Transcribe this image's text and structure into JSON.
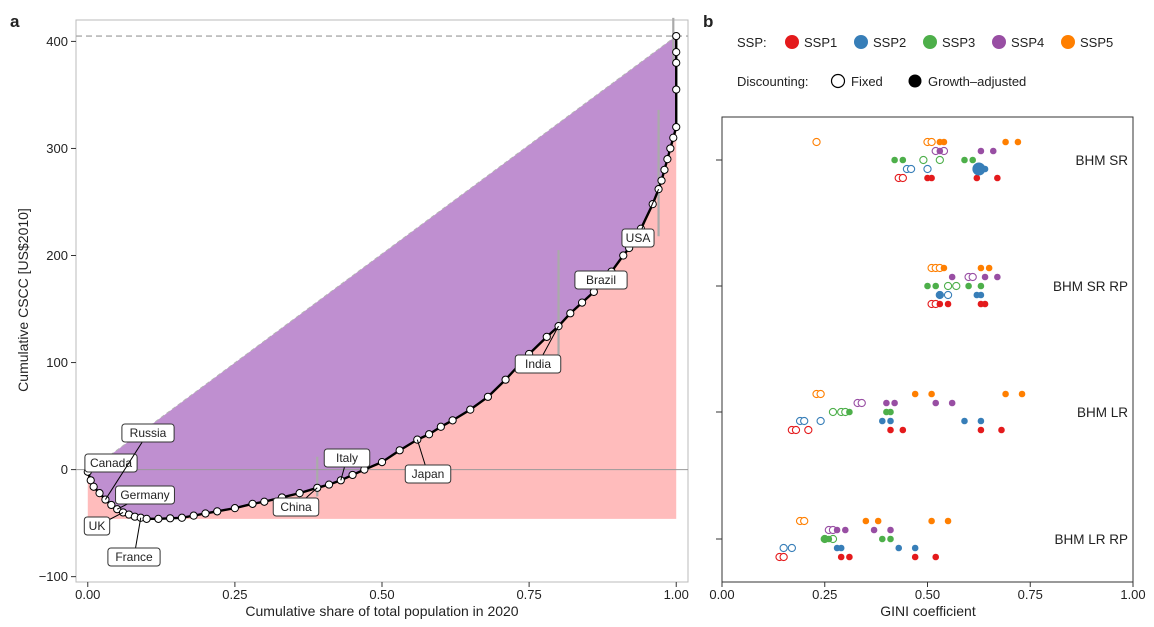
{
  "panel_a": {
    "letter": "a",
    "ylabel": "Cumulative CSCC [US$2010]",
    "xlabel": "Cumulative share of total population in 2020",
    "xticks": [
      "0.00",
      "0.25",
      "0.50",
      "0.75",
      "1.00"
    ],
    "yticks": [
      "-100",
      "0",
      "100",
      "200",
      "300",
      "400"
    ],
    "country_labels": [
      "Canada",
      "Russia",
      "Germany",
      "UK",
      "France",
      "China",
      "Italy",
      "Japan",
      "India",
      "Brazil",
      "USA"
    ]
  },
  "panel_b": {
    "letter": "b",
    "legend_ssp_title": "SSP:",
    "legend_ssp": [
      {
        "label": "SSP1",
        "color": "#e41a1c"
      },
      {
        "label": "SSP2",
        "color": "#377eb8"
      },
      {
        "label": "SSP3",
        "color": "#4daf4a"
      },
      {
        "label": "SSP4",
        "color": "#984ea3"
      },
      {
        "label": "SSP5",
        "color": "#ff7f00"
      }
    ],
    "legend_disc_title": "Discounting:",
    "legend_disc": [
      {
        "label": "Fixed",
        "style": "open"
      },
      {
        "label": "Growth–adjusted",
        "style": "filled"
      }
    ],
    "xlabel": "GINI coefficient",
    "xticks": [
      "0.00",
      "0.25",
      "0.50",
      "0.75",
      "1.00"
    ],
    "rows": [
      "BHM SR",
      "BHM SR RP",
      "BHM LR",
      "BHM LR RP"
    ]
  },
  "chart_data": [
    {
      "type": "line",
      "title": "",
      "xlabel": "Cumulative share of total population in 2020",
      "ylabel": "Cumulative CSCC [US$2010]",
      "xlim": [
        -0.02,
        1.02
      ],
      "ylim": [
        -105,
        420
      ],
      "reference_line_y": 405,
      "fill_colors": {
        "upper": "#bf8fd0",
        "lower": "#ffbcbc"
      },
      "curve": [
        [
          0.0,
          -2
        ],
        [
          0.005,
          -10
        ],
        [
          0.01,
          -16
        ],
        [
          0.02,
          -22
        ],
        [
          0.03,
          -28
        ],
        [
          0.04,
          -33
        ],
        [
          0.05,
          -37
        ],
        [
          0.06,
          -40
        ],
        [
          0.07,
          -42
        ],
        [
          0.08,
          -44
        ],
        [
          0.09,
          -45
        ],
        [
          0.1,
          -46
        ],
        [
          0.12,
          -46
        ],
        [
          0.14,
          -45.5
        ],
        [
          0.16,
          -45
        ],
        [
          0.18,
          -43
        ],
        [
          0.2,
          -41
        ],
        [
          0.22,
          -39
        ],
        [
          0.25,
          -36
        ],
        [
          0.28,
          -32
        ],
        [
          0.3,
          -30
        ],
        [
          0.33,
          -26
        ],
        [
          0.36,
          -22
        ],
        [
          0.39,
          -17
        ],
        [
          0.41,
          -14
        ],
        [
          0.43,
          -10
        ],
        [
          0.45,
          -5
        ],
        [
          0.47,
          0
        ],
        [
          0.5,
          7
        ],
        [
          0.53,
          18
        ],
        [
          0.56,
          28
        ],
        [
          0.58,
          33
        ],
        [
          0.6,
          40
        ],
        [
          0.62,
          46
        ],
        [
          0.65,
          56
        ],
        [
          0.68,
          68
        ],
        [
          0.71,
          84
        ],
        [
          0.75,
          108
        ],
        [
          0.78,
          124
        ],
        [
          0.8,
          134
        ],
        [
          0.82,
          146
        ],
        [
          0.84,
          156
        ],
        [
          0.86,
          166
        ],
        [
          0.88,
          178
        ],
        [
          0.89,
          185
        ],
        [
          0.91,
          200
        ],
        [
          0.92,
          207
        ],
        [
          0.94,
          225
        ],
        [
          0.96,
          248
        ],
        [
          0.97,
          262
        ],
        [
          0.975,
          270
        ],
        [
          0.98,
          280
        ],
        [
          0.985,
          290
        ],
        [
          0.99,
          300
        ],
        [
          0.995,
          310
        ],
        [
          1.0,
          320
        ],
        [
          1.0,
          355
        ],
        [
          1.0,
          380
        ],
        [
          1.0,
          390
        ],
        [
          1.0,
          405
        ]
      ],
      "error_bars": [
        {
          "x": 0.39,
          "lo": -25,
          "hi": 12
        },
        {
          "x": 0.8,
          "lo": 100,
          "hi": 205
        },
        {
          "x": 0.97,
          "lo": 218,
          "hi": 336
        },
        {
          "x": 0.995,
          "lo": 380,
          "hi": 422
        }
      ],
      "annotations": [
        {
          "label": "Canada",
          "x": 0.0,
          "y": -2
        },
        {
          "label": "Russia",
          "x": 0.03,
          "y": -28
        },
        {
          "label": "Germany",
          "x": 0.05,
          "y": -37
        },
        {
          "label": "UK",
          "x": 0.06,
          "y": -40
        },
        {
          "label": "France",
          "x": 0.09,
          "y": -45
        },
        {
          "label": "China",
          "x": 0.39,
          "y": -17
        },
        {
          "label": "Italy",
          "x": 0.43,
          "y": -10
        },
        {
          "label": "Japan",
          "x": 0.56,
          "y": 28
        },
        {
          "label": "India",
          "x": 0.8,
          "y": 134
        },
        {
          "label": "Brazil",
          "x": 0.89,
          "y": 185
        },
        {
          "label": "USA",
          "x": 0.97,
          "y": 262
        }
      ]
    },
    {
      "type": "scatter",
      "title": "",
      "xlabel": "GINI coefficient",
      "xlim": [
        0,
        1
      ],
      "categories": [
        "BHM SR",
        "BHM SR RP",
        "BHM LR",
        "BHM LR RP"
      ],
      "series": [
        {
          "name": "SSP1",
          "color": "#e41a1c",
          "fixed": [
            [
              0.43,
              0.44
            ],
            [
              0.51,
              0.52
            ],
            [
              0.17,
              0.18,
              0.21
            ],
            [
              0.14,
              0.15
            ]
          ],
          "growth_adjusted": [
            [
              0.5,
              0.51,
              0.62,
              0.67
            ],
            [
              0.53,
              0.55,
              0.63,
              0.64
            ],
            [
              0.41,
              0.44,
              0.63,
              0.68
            ],
            [
              0.29,
              0.31,
              0.47,
              0.52
            ]
          ]
        },
        {
          "name": "SSP2",
          "color": "#377eb8",
          "fixed": [
            [
              0.45,
              0.46,
              0.5
            ],
            [
              0.53,
              0.55
            ],
            [
              0.19,
              0.2,
              0.24
            ],
            [
              0.15,
              0.17
            ]
          ],
          "growth_adjusted": [
            [
              0.62,
              0.64
            ],
            [
              0.53,
              0.62,
              0.63
            ],
            [
              0.39,
              0.41,
              0.59,
              0.63
            ],
            [
              0.28,
              0.29,
              0.43,
              0.47
            ]
          ]
        },
        {
          "name": "SSP3",
          "color": "#4daf4a",
          "fixed": [
            [
              0.49,
              0.53
            ],
            [
              0.55,
              0.57
            ],
            [
              0.27,
              0.29,
              0.3
            ],
            [
              0.25,
              0.27
            ]
          ],
          "growth_adjusted": [
            [
              0.42,
              0.44,
              0.59,
              0.61
            ],
            [
              0.5,
              0.52,
              0.6,
              0.63
            ],
            [
              0.31,
              0.4,
              0.41
            ],
            [
              0.25,
              0.26,
              0.39,
              0.41
            ]
          ]
        },
        {
          "name": "SSP4",
          "color": "#984ea3",
          "fixed": [
            [
              0.52,
              0.54
            ],
            [
              0.6,
              0.61
            ],
            [
              0.33,
              0.34
            ],
            [
              0.26,
              0.27
            ]
          ],
          "growth_adjusted": [
            [
              0.53,
              0.63,
              0.66
            ],
            [
              0.56,
              0.64,
              0.67
            ],
            [
              0.4,
              0.42,
              0.52,
              0.56
            ],
            [
              0.28,
              0.3,
              0.37,
              0.41
            ]
          ]
        },
        {
          "name": "SSP5",
          "color": "#ff7f00",
          "fixed": [
            [
              0.23,
              0.5,
              0.51
            ],
            [
              0.51,
              0.52,
              0.53
            ],
            [
              0.23,
              0.24
            ],
            [
              0.19,
              0.2
            ]
          ],
          "growth_adjusted": [
            [
              0.53,
              0.54,
              0.69,
              0.72
            ],
            [
              0.54,
              0.63,
              0.65
            ],
            [
              0.47,
              0.51,
              0.69,
              0.73
            ],
            [
              0.35,
              0.38,
              0.51,
              0.55
            ]
          ]
        }
      ],
      "highlight": {
        "category": "BHM SR",
        "series": "SSP2",
        "x": 0.625
      }
    }
  ]
}
